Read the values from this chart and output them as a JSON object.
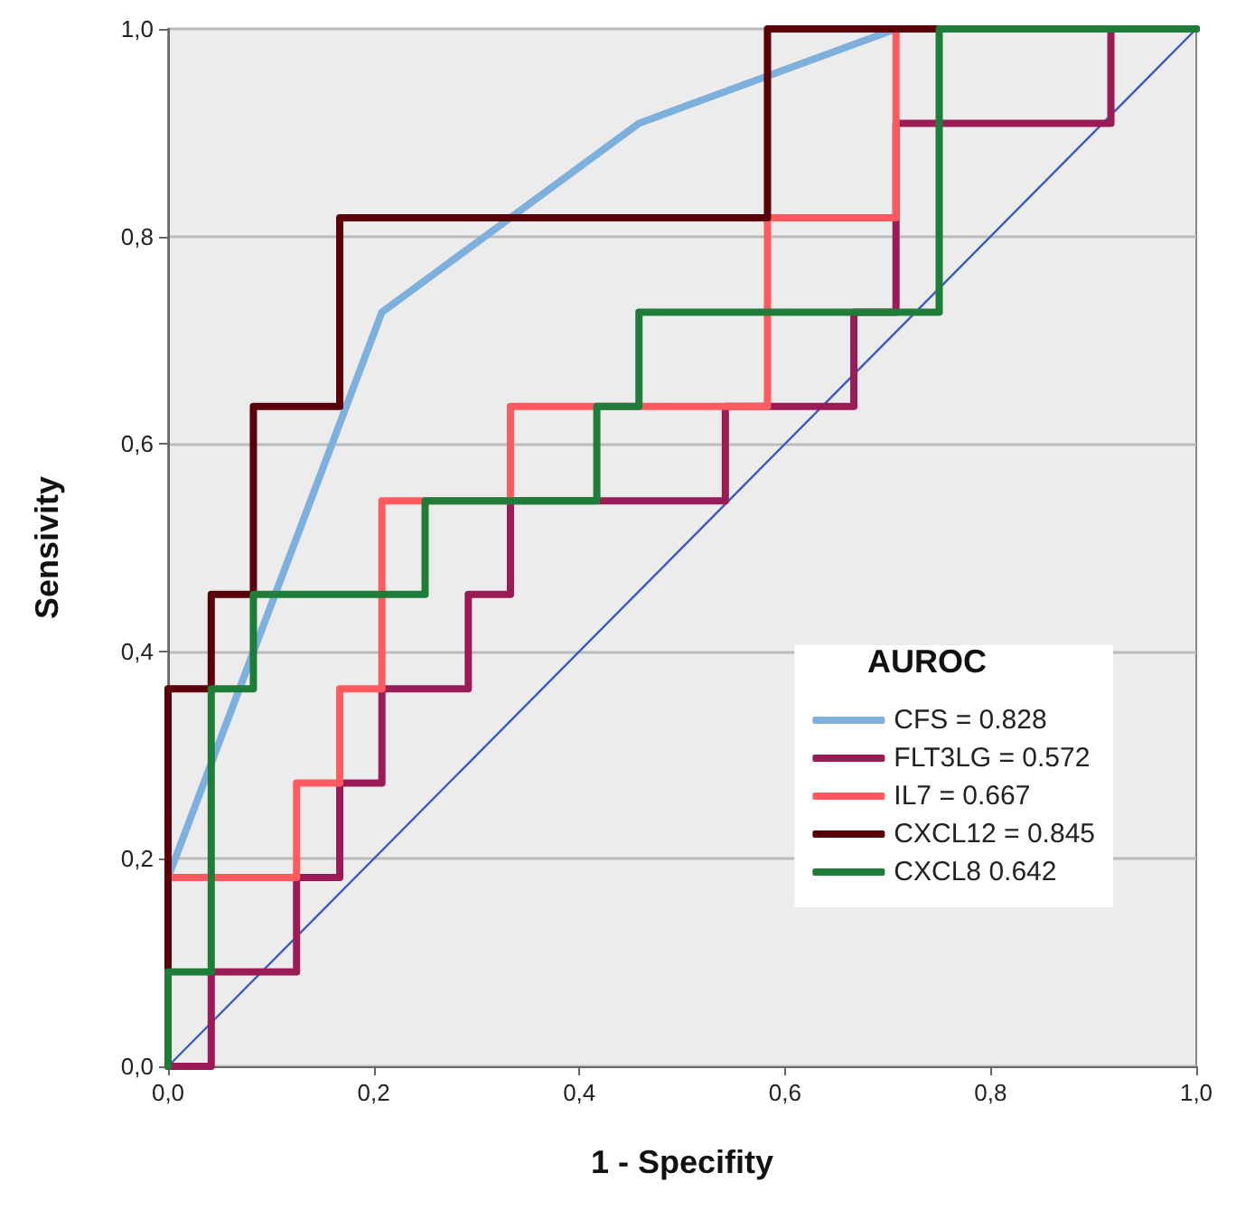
{
  "chart_data": {
    "type": "line",
    "xlabel": "1 - Specifity",
    "ylabel": "Sensivity",
    "legend_title": "AUROC",
    "xlim": [
      0,
      1
    ],
    "ylim": [
      0,
      1
    ],
    "xticks": [
      {
        "value": 0,
        "label": "0,0"
      },
      {
        "value": 0.2,
        "label": "0,2"
      },
      {
        "value": 0.4,
        "label": "0,4"
      },
      {
        "value": 0.6,
        "label": "0,6"
      },
      {
        "value": 0.8,
        "label": "0,8"
      },
      {
        "value": 1,
        "label": "1,0"
      }
    ],
    "yticks": [
      {
        "value": 0,
        "label": "0,0"
      },
      {
        "value": 0.2,
        "label": "0,2"
      },
      {
        "value": 0.4,
        "label": "0,4"
      },
      {
        "value": 0.6,
        "label": "0,6"
      },
      {
        "value": 0.8,
        "label": "0,8"
      },
      {
        "value": 1,
        "label": "1,0"
      }
    ],
    "grid": "y",
    "legend": "bottom right",
    "marker": "none",
    "line_style": "solid",
    "series": [
      {
        "type": "line",
        "color": "#3a5cc0",
        "x": [
          0,
          1
        ],
        "values": [
          0,
          1
        ]
      },
      {
        "name": "CFS = 0.828",
        "color": "#7eb0dd",
        "x": [
          0,
          0,
          0.208,
          0.458,
          0.708,
          1
        ],
        "values": [
          0,
          0.182,
          0.727,
          0.909,
          1,
          1
        ]
      },
      {
        "name": "FLT3LG = 0.572",
        "color": "#9b1b56",
        "x": [
          0,
          0.042,
          0.042,
          0.125,
          0.125,
          0.167,
          0.167,
          0.208,
          0.208,
          0.292,
          0.292,
          0.333,
          0.333,
          0.542,
          0.542,
          0.667,
          0.667,
          0.708,
          0.708,
          0.917,
          0.917,
          1
        ],
        "values": [
          0,
          0,
          0.091,
          0.091,
          0.182,
          0.182,
          0.273,
          0.273,
          0.364,
          0.364,
          0.455,
          0.455,
          0.545,
          0.545,
          0.636,
          0.636,
          0.727,
          0.727,
          0.909,
          0.909,
          1,
          1
        ]
      },
      {
        "name": "IL7 = 0.667",
        "color": "#ff5a5f",
        "x": [
          0,
          0,
          0.125,
          0.125,
          0.167,
          0.167,
          0.208,
          0.208,
          0.333,
          0.333,
          0.583,
          0.583,
          0.708,
          0.708,
          1
        ],
        "values": [
          0,
          0.182,
          0.182,
          0.273,
          0.273,
          0.364,
          0.364,
          0.545,
          0.545,
          0.636,
          0.636,
          0.818,
          0.818,
          1,
          1
        ]
      },
      {
        "name": "CXCL12 = 0.845",
        "color": "#5a0008",
        "x": [
          0,
          0,
          0.042,
          0.042,
          0.083,
          0.083,
          0.167,
          0.167,
          0.583,
          0.583,
          1
        ],
        "values": [
          0,
          0.364,
          0.364,
          0.455,
          0.455,
          0.636,
          0.636,
          0.818,
          0.818,
          1,
          1
        ]
      },
      {
        "name": "CXCL8 0.642",
        "color": "#1f7d3a",
        "x": [
          0,
          0,
          0.042,
          0.042,
          0.083,
          0.083,
          0.25,
          0.25,
          0.417,
          0.417,
          0.458,
          0.458,
          0.75,
          0.75,
          1
        ],
        "values": [
          0,
          0.091,
          0.091,
          0.364,
          0.364,
          0.455,
          0.455,
          0.545,
          0.545,
          0.636,
          0.636,
          0.727,
          0.727,
          1,
          1
        ]
      }
    ]
  }
}
